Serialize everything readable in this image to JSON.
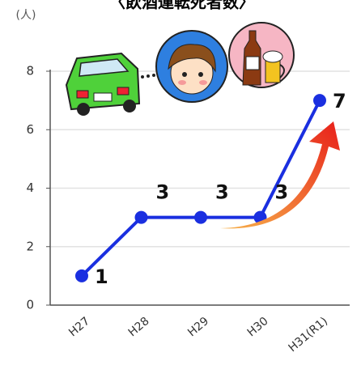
{
  "chart_data": {
    "type": "line",
    "title": "〈飲酒運転死者数〉",
    "y_unit": "(人)",
    "categories": [
      "H27",
      "H28",
      "H29",
      "H30",
      "H31(R1)"
    ],
    "series": [
      {
        "name": "飲酒運転死者数",
        "color": "#1a2fe0",
        "values": [
          1,
          3,
          3,
          3,
          7
        ]
      }
    ],
    "ylim": [
      0,
      8
    ],
    "yticks": [
      0,
      2,
      4,
      6,
      8
    ],
    "grid": true
  }
}
